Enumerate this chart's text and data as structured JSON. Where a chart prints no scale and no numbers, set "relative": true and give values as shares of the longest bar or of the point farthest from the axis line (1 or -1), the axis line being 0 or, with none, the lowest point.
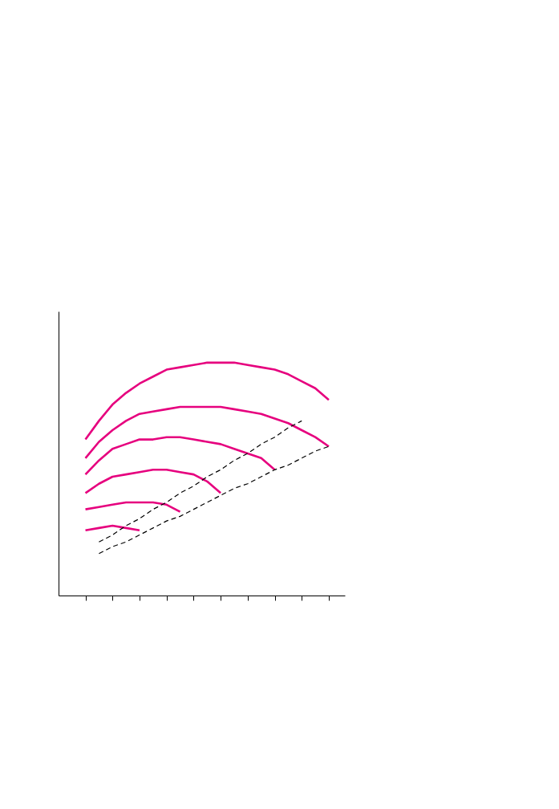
{
  "chart_data": {
    "type": "line",
    "relative": true,
    "grid": false,
    "marker": "none",
    "categories": [
      null,
      null,
      null,
      null,
      null,
      null,
      null,
      null,
      null,
      null,
      null,
      null,
      null,
      null,
      null,
      null,
      null,
      null,
      null
    ],
    "series": [
      {
        "color": "#e6007e",
        "line_style": "solid",
        "values": [
          0.67,
          0.75,
          0.82,
          0.87,
          0.91,
          0.94,
          0.97,
          0.98,
          0.99,
          1,
          1,
          1,
          0.99,
          0.98,
          0.97,
          0.95,
          0.92,
          0.89,
          0.84
        ]
      },
      {
        "color": "#e6007e",
        "line_style": "solid",
        "values": [
          0.59,
          0.66,
          0.71,
          0.75,
          0.78,
          0.79,
          0.8,
          0.81,
          0.81,
          0.81,
          0.81,
          0.8,
          0.79,
          0.78,
          0.76,
          0.74,
          0.71,
          0.68,
          0.64
        ]
      },
      {
        "color": "#e6007e",
        "line_style": "solid",
        "values": [
          0.52,
          0.58,
          0.63,
          0.65,
          0.67,
          0.67,
          0.68,
          0.68,
          0.67,
          0.66,
          0.65,
          0.63,
          0.61,
          0.59,
          0.54,
          null,
          null,
          null,
          null
        ]
      },
      {
        "color": "#e6007e",
        "line_style": "solid",
        "values": [
          0.44,
          0.48,
          0.51,
          0.52,
          0.53,
          0.54,
          0.54,
          0.53,
          0.52,
          0.49,
          0.44,
          null,
          null,
          null,
          null,
          null,
          null,
          null,
          null
        ]
      },
      {
        "color": "#e6007e",
        "line_style": "solid",
        "values": [
          0.37,
          0.38,
          0.39,
          0.4,
          0.4,
          0.4,
          0.39,
          0.36,
          null,
          null,
          null,
          null,
          null,
          null,
          null,
          null,
          null,
          null,
          null
        ]
      },
      {
        "color": "#e6007e",
        "line_style": "solid",
        "values": [
          0.28,
          0.29,
          0.3,
          0.29,
          0.28,
          null,
          null,
          null,
          null,
          null,
          null,
          null,
          null,
          null,
          null,
          null,
          null,
          null,
          null
        ]
      },
      {
        "color": "#000000",
        "line_style": "dashed",
        "values": [
          null,
          0.23,
          0.26,
          0.3,
          0.33,
          0.37,
          0.4,
          0.44,
          0.47,
          0.51,
          0.54,
          0.58,
          0.61,
          0.65,
          0.68,
          0.72,
          0.75,
          null,
          null
        ]
      },
      {
        "color": "#000000",
        "line_style": "dashed",
        "values": [
          null,
          0.18,
          0.21,
          0.23,
          0.26,
          0.29,
          0.32,
          0.34,
          0.37,
          0.4,
          0.43,
          0.46,
          0.48,
          0.51,
          0.54,
          0.56,
          0.59,
          0.62,
          0.64
        ]
      }
    ]
  }
}
